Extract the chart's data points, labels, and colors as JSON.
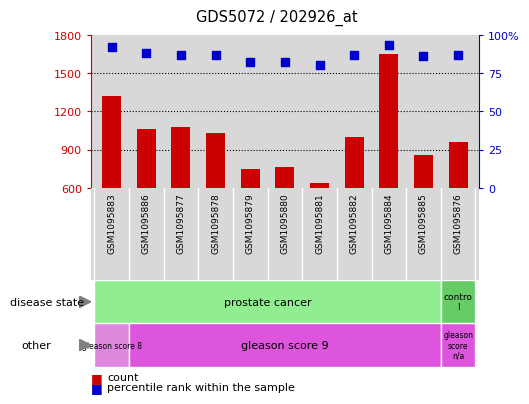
{
  "title": "GDS5072 / 202926_at",
  "samples": [
    "GSM1095883",
    "GSM1095886",
    "GSM1095877",
    "GSM1095878",
    "GSM1095879",
    "GSM1095880",
    "GSM1095881",
    "GSM1095882",
    "GSM1095884",
    "GSM1095885",
    "GSM1095876"
  ],
  "counts": [
    1320,
    1060,
    1075,
    1030,
    750,
    760,
    640,
    1000,
    1650,
    860,
    960
  ],
  "percentile_ranks": [
    92,
    88,
    87,
    87,
    82,
    82,
    80,
    87,
    93,
    86,
    87
  ],
  "ylim_left": [
    600,
    1800
  ],
  "ylim_right": [
    0,
    100
  ],
  "yticks_left": [
    600,
    900,
    1200,
    1500,
    1800
  ],
  "yticks_right": [
    0,
    25,
    50,
    75,
    100
  ],
  "bar_color": "#cc0000",
  "dot_color": "#0000cc",
  "bar_width": 0.55,
  "disease_state": {
    "prostate_label": "prostate cancer",
    "control_label": "contro\nl",
    "color_prostate": "#90EE90",
    "color_control": "#66cc66"
  },
  "other": {
    "gleason8_label": "gleason score 8",
    "gleason9_label": "gleason score 9",
    "gleasonNA_label": "gleason\nscore\nn/a",
    "color_gleason8": "#dd88dd",
    "color_gleason9": "#dd55dd",
    "color_gleasonNA": "#dd55dd"
  },
  "legend_count_label": "count",
  "legend_percentile_label": "percentile rank within the sample",
  "plot_bg_color": "#d8d8d8",
  "tick_bg_color": "#d8d8d8"
}
